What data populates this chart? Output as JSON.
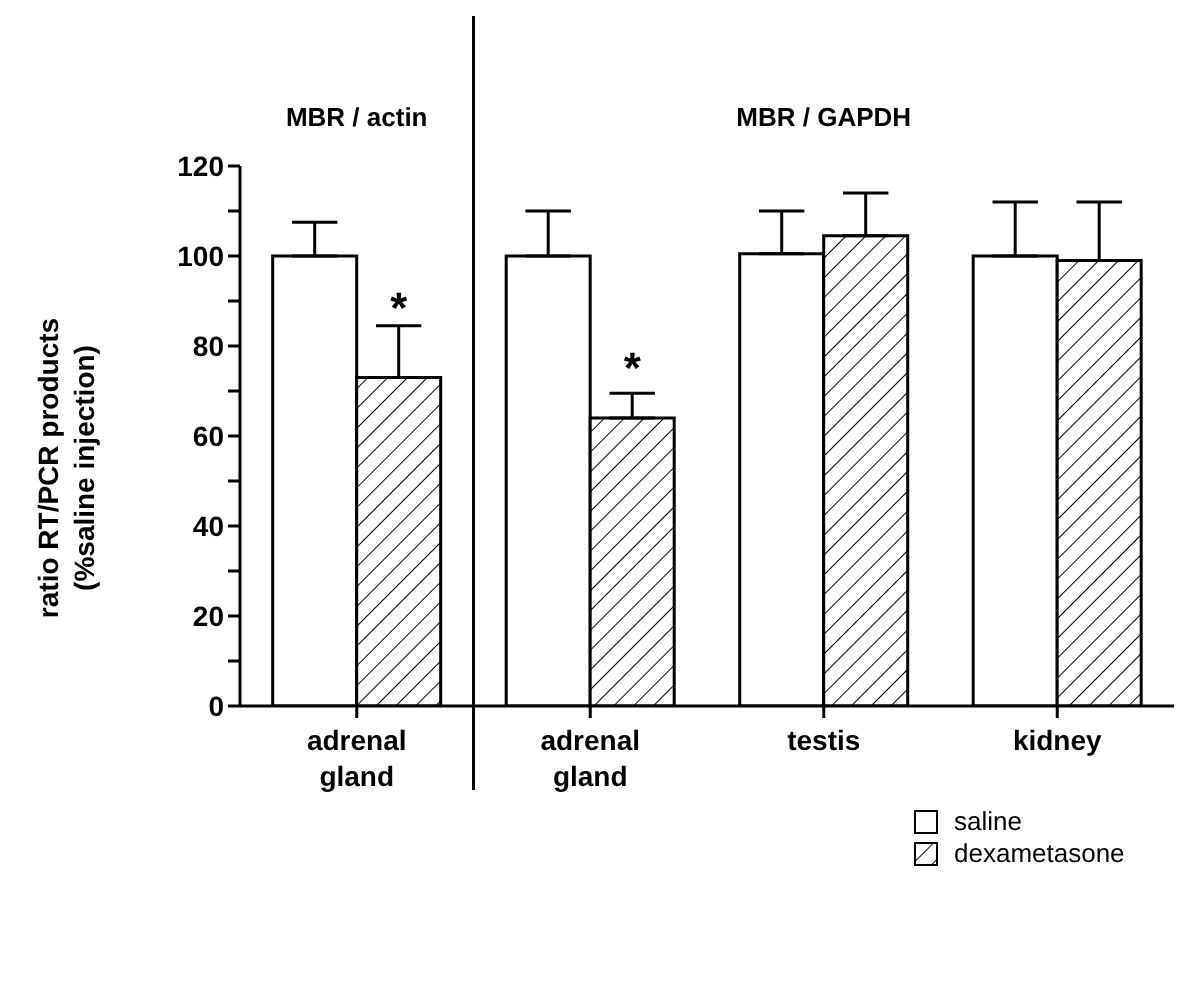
{
  "chart_data": {
    "type": "bar",
    "ylabel": "ratio RT/PCR products (%saline injection)",
    "categories": [
      "adrenal gland",
      "adrenal gland",
      "testis",
      "kidney"
    ],
    "series": [
      {
        "name": "saline",
        "color": "#ffffff",
        "values": [
          100,
          100,
          100.5,
          100
        ],
        "errors": [
          [
            100,
            107.5
          ],
          [
            100,
            110
          ],
          [
            100.5,
            110
          ],
          [
            100,
            112
          ]
        ]
      },
      {
        "name": "dexametasone",
        "color": "#000000",
        "values": [
          73,
          64,
          104.5,
          99
        ],
        "errors": [
          [
            73,
            84.5
          ],
          [
            64,
            69.5
          ],
          [
            104.5,
            114
          ],
          [
            99,
            112
          ]
        ]
      }
    ],
    "ylim": [
      0,
      120
    ],
    "yticks": [
      0,
      {
        "value": 10,
        "label": null
      },
      20,
      {
        "value": 30,
        "label": null
      },
      40,
      {
        "value": 50,
        "label": null
      },
      60,
      {
        "value": 70,
        "label": null
      },
      80,
      {
        "value": 90,
        "label": null
      },
      100,
      {
        "value": 110,
        "label": null
      },
      120
    ],
    "annotations": [
      {
        "text": "MBR / actin"
      },
      {
        "text": "MBR / GAPDH"
      },
      "*",
      "*"
    ],
    "grid": false,
    "legend": "bottom right"
  }
}
